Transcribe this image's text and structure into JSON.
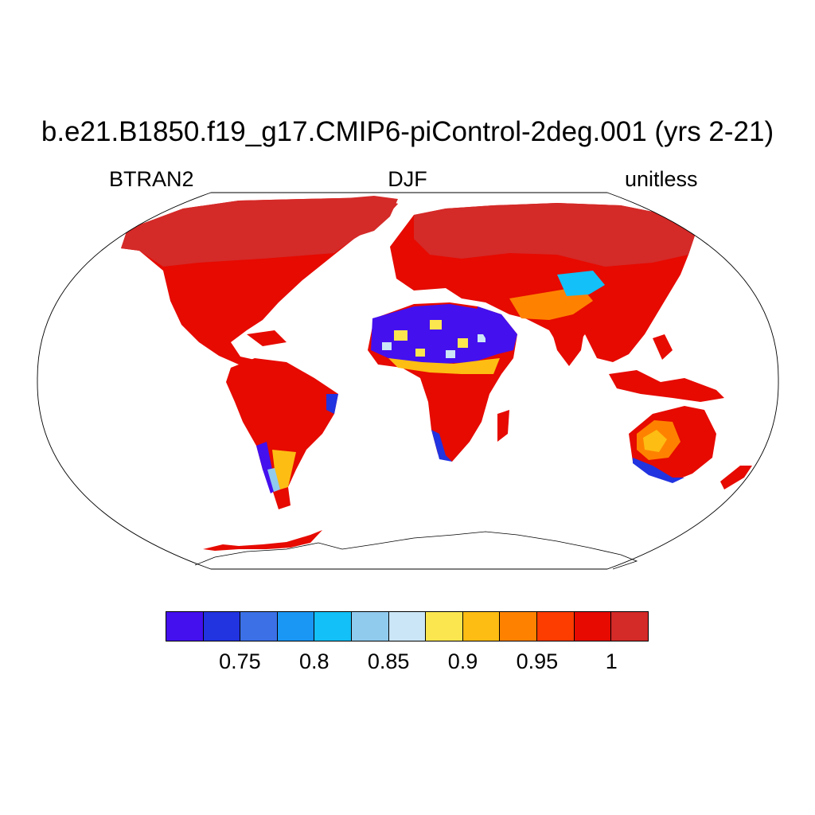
{
  "title": "b.e21.B1850.f19_g17.CMIP6-piControl-2deg.001 (yrs 2-21)",
  "left_subtitle": "BTRAN2",
  "center_subtitle": "DJF",
  "right_subtitle": "unitless",
  "projection": "Robinson",
  "colorbar": {
    "colors": [
      "#4410ee",
      "#2233e0",
      "#3c70e6",
      "#1a96f5",
      "#13c0f7",
      "#90caed",
      "#cbe6f6",
      "#fbe650",
      "#fdbd13",
      "#fe8200",
      "#fd3c00",
      "#e60a00",
      "#d42a28"
    ],
    "labels": [
      "0.75",
      "0.8",
      "0.85",
      "0.9",
      "0.95",
      "1"
    ]
  }
}
